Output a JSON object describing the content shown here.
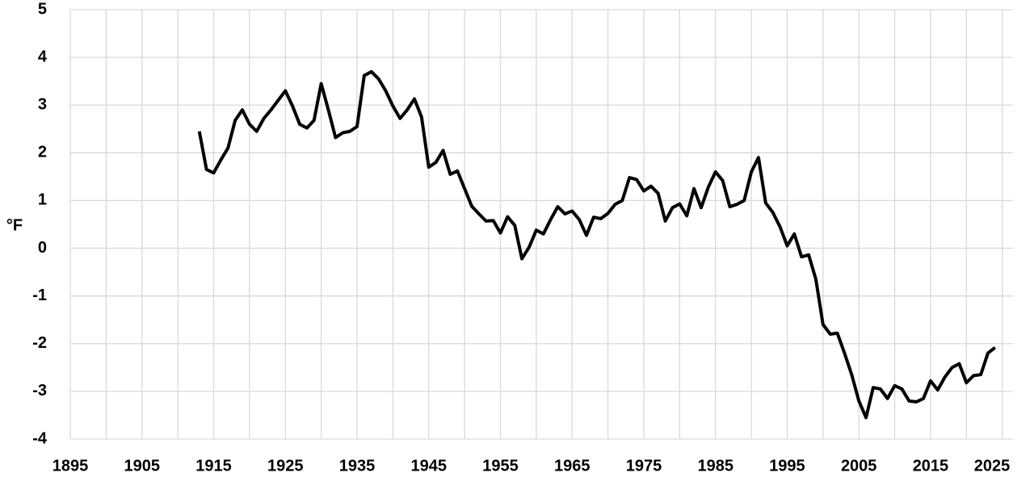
{
  "chart_data": {
    "type": "line",
    "y_label": "°F",
    "x": [
      1913,
      1914,
      1915,
      1916,
      1917,
      1918,
      1919,
      1920,
      1921,
      1922,
      1923,
      1924,
      1925,
      1926,
      1927,
      1928,
      1929,
      1930,
      1931,
      1932,
      1933,
      1934,
      1935,
      1936,
      1937,
      1938,
      1939,
      1940,
      1941,
      1942,
      1943,
      1944,
      1945,
      1946,
      1947,
      1948,
      1949,
      1950,
      1951,
      1952,
      1953,
      1954,
      1955,
      1956,
      1957,
      1958,
      1959,
      1960,
      1961,
      1962,
      1963,
      1964,
      1965,
      1966,
      1967,
      1968,
      1969,
      1970,
      1971,
      1972,
      1973,
      1974,
      1975,
      1976,
      1977,
      1978,
      1979,
      1980,
      1981,
      1982,
      1983,
      1984,
      1985,
      1986,
      1987,
      1988,
      1989,
      1990,
      1991,
      1992,
      1993,
      1994,
      1995,
      1996,
      1997,
      1998,
      1999,
      2000,
      2001,
      2002,
      2003,
      2004,
      2005,
      2006,
      2007,
      2008,
      2009,
      2010,
      2011,
      2012,
      2013,
      2014,
      2015,
      2016,
      2017,
      2018,
      2019,
      2020,
      2021,
      2022,
      2023,
      2024
    ],
    "values": [
      2.45,
      1.65,
      1.58,
      1.85,
      2.1,
      2.68,
      2.9,
      2.6,
      2.45,
      2.72,
      2.9,
      3.1,
      3.3,
      2.98,
      2.6,
      2.52,
      2.68,
      3.45,
      2.9,
      2.32,
      2.42,
      2.45,
      2.55,
      3.62,
      3.7,
      3.55,
      3.3,
      2.98,
      2.72,
      2.9,
      3.13,
      2.75,
      1.7,
      1.8,
      2.05,
      1.55,
      1.62,
      1.25,
      0.88,
      0.72,
      0.57,
      0.58,
      0.32,
      0.66,
      0.48,
      -0.22,
      0.02,
      0.38,
      0.3,
      0.6,
      0.87,
      0.72,
      0.78,
      0.6,
      0.27,
      0.65,
      0.62,
      0.73,
      0.92,
      1.0,
      1.48,
      1.44,
      1.2,
      1.3,
      1.15,
      0.57,
      0.85,
      0.93,
      0.68,
      1.25,
      0.85,
      1.28,
      1.6,
      1.42,
      0.87,
      0.92,
      1.0,
      1.6,
      1.9,
      0.95,
      0.75,
      0.45,
      0.05,
      0.3,
      -0.18,
      -0.14,
      -0.65,
      -1.6,
      -1.8,
      -1.78,
      -2.2,
      -2.65,
      -3.2,
      -3.55,
      -2.92,
      -2.95,
      -3.15,
      -2.88,
      -2.95,
      -3.2,
      -3.22,
      -3.15,
      -2.78,
      -2.97,
      -2.7,
      -2.5,
      -2.42,
      -2.82,
      -2.67,
      -2.65,
      -2.2,
      -2.08
    ],
    "color": "#000000",
    "xlim": [
      1895,
      2026.5
    ],
    "xticks": [
      1895,
      1905,
      1915,
      1925,
      1935,
      1945,
      1955,
      1965,
      1975,
      1985,
      1995,
      2005,
      2015,
      2025
    ],
    "x_minor_ticks": [
      1900,
      1910,
      1920,
      1930,
      1940,
      1950,
      1960,
      1970,
      1980,
      1990,
      2000,
      2010,
      2020
    ],
    "ylim": [
      -4,
      5
    ],
    "yticks": [
      -4,
      -3,
      -2,
      -1,
      0,
      1,
      2,
      3,
      4,
      5
    ],
    "grid": true
  }
}
